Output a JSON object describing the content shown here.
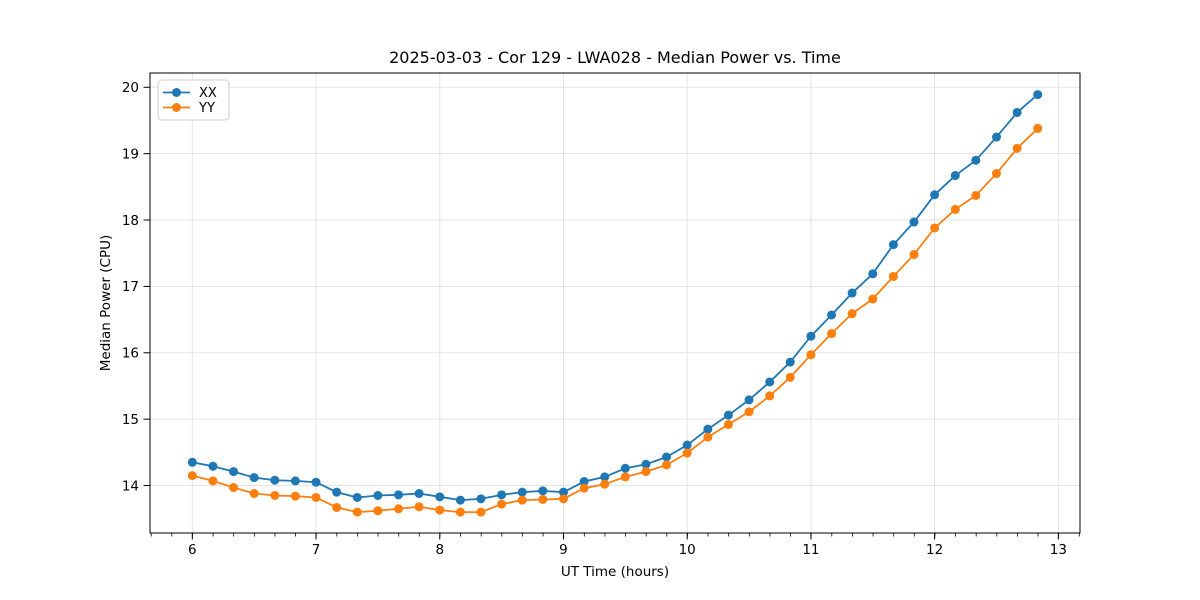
{
  "chart_data": {
    "type": "line",
    "title": "2025-03-03 - Cor 129 - LWA028 - Median Power vs. Time",
    "xlabel": "UT Time (hours)",
    "ylabel": "Median Power (CPU)",
    "xlim": [
      5.658,
      13.175
    ],
    "ylim": [
      13.285,
      20.215
    ],
    "x_major_ticks": [
      6,
      7,
      8,
      9,
      10,
      11,
      12,
      13
    ],
    "x_minor_tick_step_hours": 0.1667,
    "y_major_ticks": [
      14,
      15,
      16,
      17,
      18,
      19,
      20
    ],
    "grid": true,
    "grid_color": "#e3e3e3",
    "legend_position": "upper left",
    "x": [
      6.0,
      6.167,
      6.333,
      6.5,
      6.667,
      6.833,
      7.0,
      7.167,
      7.333,
      7.5,
      7.667,
      7.833,
      8.0,
      8.167,
      8.333,
      8.5,
      8.667,
      8.833,
      9.0,
      9.167,
      9.333,
      9.5,
      9.667,
      9.833,
      10.0,
      10.167,
      10.333,
      10.5,
      10.667,
      10.833,
      11.0,
      11.167,
      11.333,
      11.5,
      11.667,
      11.833,
      12.0,
      12.167,
      12.333,
      12.5,
      12.667,
      12.833
    ],
    "series": [
      {
        "name": "XX",
        "color": "#1f77b4",
        "values": [
          14.35,
          14.29,
          14.21,
          14.12,
          14.08,
          14.07,
          14.05,
          13.9,
          13.82,
          13.85,
          13.86,
          13.88,
          13.83,
          13.78,
          13.8,
          13.86,
          13.9,
          13.92,
          13.9,
          14.06,
          14.13,
          14.26,
          14.32,
          14.43,
          14.61,
          14.85,
          15.06,
          15.29,
          15.56,
          15.86,
          16.25,
          16.57,
          16.9,
          17.19,
          17.63,
          17.97,
          18.38,
          18.67,
          18.9,
          19.25,
          19.62,
          19.89
        ]
      },
      {
        "name": "YY",
        "color": "#ff7f0e",
        "values": [
          14.15,
          14.07,
          13.97,
          13.88,
          13.85,
          13.84,
          13.82,
          13.67,
          13.6,
          13.62,
          13.65,
          13.68,
          13.63,
          13.6,
          13.6,
          13.72,
          13.78,
          13.79,
          13.8,
          13.96,
          14.02,
          14.13,
          14.21,
          14.31,
          14.49,
          14.73,
          14.92,
          15.11,
          15.35,
          15.63,
          15.97,
          16.29,
          16.59,
          16.81,
          17.15,
          17.48,
          17.88,
          18.16,
          18.37,
          18.7,
          19.08,
          19.38
        ]
      }
    ]
  }
}
